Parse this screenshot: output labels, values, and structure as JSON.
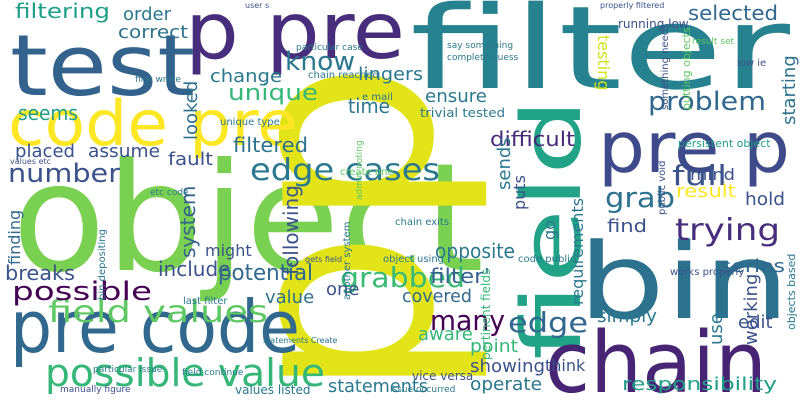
{
  "words": [
    {
      "text": "object",
      "color": "#7ad151"
    },
    {
      "text": "p",
      "color": "#e2e418"
    },
    {
      "text": "p",
      "color": "#e2e418"
    },
    {
      "text": "filter",
      "color": "#26828e"
    },
    {
      "text": "p pre",
      "color": "#472d7b"
    },
    {
      "text": "test",
      "color": "#33638d"
    },
    {
      "text": "code pre",
      "color": "#fde725"
    },
    {
      "text": "field",
      "color": "#20a386"
    },
    {
      "text": "pre p",
      "color": "#3e4a89"
    },
    {
      "text": "bin",
      "color": "#2c728e"
    },
    {
      "text": "chain",
      "color": "#482475"
    },
    {
      "text": "pre code",
      "color": "#31688e"
    },
    {
      "text": "possible value",
      "color": "#35b779"
    },
    {
      "text": "field values",
      "color": "#5ec962"
    },
    {
      "text": "possible",
      "color": "#440154"
    },
    {
      "text": "edge cases",
      "color": "#2a788e"
    },
    {
      "text": "number",
      "color": "#3b528b"
    },
    {
      "text": "grabbed",
      "color": "#3aba76"
    },
    {
      "text": "many",
      "color": "#440154"
    },
    {
      "text": "edge",
      "color": "#31688e"
    },
    {
      "text": "full",
      "color": "#3b528b"
    },
    {
      "text": "trying",
      "color": "#472d7b"
    },
    {
      "text": "problem",
      "color": "#31688e"
    },
    {
      "text": "know",
      "color": "#2a788e"
    },
    {
      "text": "unique",
      "color": "#35b779"
    },
    {
      "text": "grab",
      "color": "#2c728e"
    },
    {
      "text": "result",
      "color": "#fde725"
    },
    {
      "text": "filtering",
      "color": "#1f9e89"
    },
    {
      "text": "order",
      "color": "#2a788e"
    },
    {
      "text": "correct",
      "color": "#2c728e"
    },
    {
      "text": "seems",
      "color": "#1f9e89"
    },
    {
      "text": "change",
      "color": "#2a788e"
    },
    {
      "text": "lingers",
      "color": "#2a788e"
    },
    {
      "text": "selected",
      "color": "#31688e"
    },
    {
      "text": "time",
      "color": "#2a788e"
    },
    {
      "text": "filtered",
      "color": "#2c728e"
    },
    {
      "text": "placed",
      "color": "#3b528b"
    },
    {
      "text": "assume",
      "color": "#3b528b"
    },
    {
      "text": "fault",
      "color": "#3b528b"
    },
    {
      "text": "difficult",
      "color": "#482878"
    },
    {
      "text": "ensure",
      "color": "#2a788e"
    },
    {
      "text": "trivial tested",
      "color": "#2a788e"
    },
    {
      "text": "filter'",
      "color": "#33638d"
    },
    {
      "text": "covered",
      "color": "#31688e"
    },
    {
      "text": "point",
      "color": "#35b779"
    },
    {
      "text": "showing",
      "color": "#3b528b"
    },
    {
      "text": "statements",
      "color": "#2a788e"
    },
    {
      "text": "operate",
      "color": "#2a788e"
    },
    {
      "text": "think",
      "color": "#3b528b"
    },
    {
      "text": "responsibility",
      "color": "#1f9e89"
    },
    {
      "text": "working",
      "color": "#3b528b"
    },
    {
      "text": "edit",
      "color": "#3b528b"
    },
    {
      "text": "simply",
      "color": "#2a788e"
    },
    {
      "text": "use",
      "color": "#2a788e"
    },
    {
      "text": "series",
      "color": "#31688e"
    },
    {
      "text": "hold",
      "color": "#3b528b"
    },
    {
      "text": "starting",
      "color": "#2c728e"
    },
    {
      "text": "mind",
      "color": "#3b528b"
    },
    {
      "text": "find",
      "color": "#3b528b"
    },
    {
      "text": "requirements",
      "color": "#2a788e"
    },
    {
      "text": "testing",
      "color": "#d2e21b"
    },
    {
      "text": "putting objects",
      "color": "#5ec962"
    },
    {
      "text": "running low",
      "color": "#3b528b"
    },
    {
      "text": "something needs",
      "color": "#3b528b"
    },
    {
      "text": "sends",
      "color": "#2a788e"
    },
    {
      "text": "puts",
      "color": "#3b528b"
    },
    {
      "text": "go",
      "color": "#2a788e"
    },
    {
      "text": "opposite",
      "color": "#2a788e"
    },
    {
      "text": "following",
      "color": "#3b528b"
    },
    {
      "text": "system",
      "color": "#33638d"
    },
    {
      "text": "might",
      "color": "#3b528b"
    },
    {
      "text": "include",
      "color": "#3b528b"
    },
    {
      "text": "potential",
      "color": "#31688e"
    },
    {
      "text": "value",
      "color": "#2c728e"
    },
    {
      "text": "one",
      "color": "#3b528b"
    },
    {
      "text": "aware",
      "color": "#35b779"
    },
    {
      "text": "finding",
      "color": "#31688e"
    },
    {
      "text": "breaks",
      "color": "#3b528b"
    },
    {
      "text": "looked",
      "color": "#2c728e"
    },
    {
      "text": "another system",
      "color": "#2a788e"
    },
    {
      "text": "bin depositing",
      "color": "#2a788e"
    },
    {
      "text": "admin noting",
      "color": "#5ec962"
    },
    {
      "text": "chain exits",
      "color": "#2a788e"
    },
    {
      "text": "object using",
      "color": "#2a788e"
    },
    {
      "text": "code public",
      "color": "#2a788e"
    },
    {
      "text": "e mail",
      "color": "#2a788e"
    },
    {
      "text": "unique type",
      "color": "#2a788e"
    },
    {
      "text": "create one",
      "color": "#5ec962"
    },
    {
      "text": "chain reached",
      "color": "#2a788e"
    },
    {
      "text": "first wrote",
      "color": "#2a788e"
    },
    {
      "text": "particular case",
      "color": "#2a788e"
    },
    {
      "text": "user s",
      "color": "#3b528b"
    },
    {
      "text": "say something",
      "color": "#2a788e"
    },
    {
      "text": "complete guess",
      "color": "#2a788e"
    },
    {
      "text": "result set",
      "color": "#5ec962"
    },
    {
      "text": "properly filtered",
      "color": "#3b528b"
    },
    {
      "text": "low ie",
      "color": "#3b528b"
    },
    {
      "text": "persistent object",
      "color": "#1f9e89"
    },
    {
      "text": "public void",
      "color": "#3b528b"
    },
    {
      "text": "pertinent fields",
      "color": "#35b779"
    },
    {
      "text": "vice versa",
      "color": "#3b528b"
    },
    {
      "text": "issue occurred",
      "color": "#2a788e"
    },
    {
      "text": "last filter",
      "color": "#2a788e"
    },
    {
      "text": "statements Create",
      "color": "#2a788e"
    },
    {
      "text": "field continue",
      "color": "#2a788e"
    },
    {
      "text": "particular issue",
      "color": "#2a788e"
    },
    {
      "text": "manually figure",
      "color": "#3b528b"
    },
    {
      "text": "values listed",
      "color": "#2a788e"
    },
    {
      "text": "objects based",
      "color": "#2a788e"
    },
    {
      "text": "works properly",
      "color": "#3b528b"
    },
    {
      "text": "etc code",
      "color": "#2a788e"
    },
    {
      "text": "values etc",
      "color": "#3b528b"
    },
    {
      "text": "gets field",
      "color": "#3b528b"
    }
  ]
}
